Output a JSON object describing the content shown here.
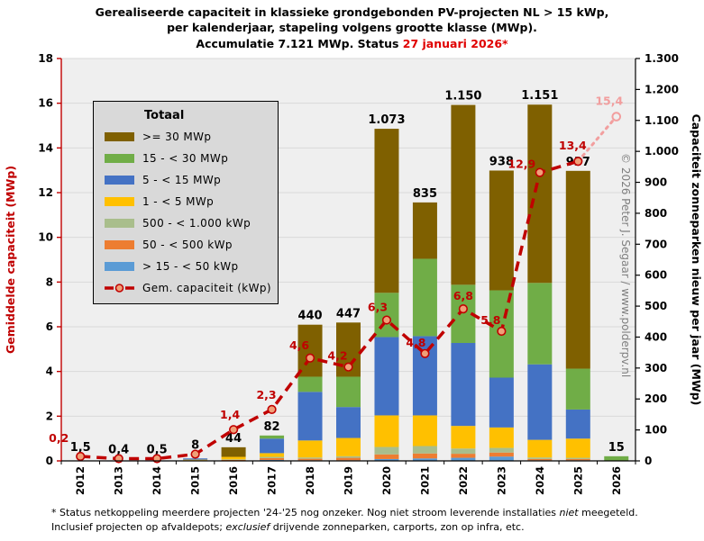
{
  "title": {
    "line1": "Gerealiseerde capaciteit in klassieke grondgebonden PV-projecten NL > 15 kWp,",
    "line2": "per kalenderjaar, stapeling volgens grootte klasse (MWp).",
    "line3_black": "Accumulatie 7.121 MWp. Status ",
    "line3_red": "27 januari 2026*"
  },
  "copyright": "© 2026 Peter J. Segaar / www.polderpv.nl",
  "legend": {
    "title": "Totaal"
  },
  "footnote": {
    "line1_a": "* Status netkoppeling meerdere projecten '24-'25 nog onzeker. Nog niet stroom leverende installaties ",
    "line1_em": "niet",
    "line1_b": " meegeteld.",
    "line2_a": "Inclusief projecten op afvaldepots; ",
    "line2_em": "exclusief",
    "line2_b": " drijvende zonneparken, carports, zon op infra, etc."
  },
  "chart_data": {
    "type": "bar",
    "stacked": true,
    "grid": true,
    "x": [
      "2012",
      "2013",
      "2014",
      "2015",
      "2016",
      "2017",
      "2018",
      "2019",
      "2020",
      "2021",
      "2022",
      "2023",
      "2024",
      "2025",
      "2026"
    ],
    "bar_total_labels": [
      "1,5",
      "0,4",
      "0,5",
      "8",
      "44",
      "82",
      "440",
      "447",
      "1.073",
      "835",
      "1.150",
      "938",
      "1.151",
      "937",
      "15"
    ],
    "series": [
      {
        "name": ">= 30 MWp",
        "color": "#7f6000",
        "values": [
          0,
          0,
          0,
          0,
          31,
          0,
          168,
          175,
          530,
          182,
          581,
          387,
          576,
          639,
          0
        ]
      },
      {
        "name": "15 - < 30 MWp",
        "color": "#70ad47",
        "values": [
          0,
          0,
          0,
          0,
          0,
          10,
          49,
          98,
          143,
          250,
          188,
          282,
          263,
          132,
          15
        ]
      },
      {
        "name": "5 - < 15 MWp",
        "color": "#4472c4",
        "values": [
          0,
          0,
          0,
          4,
          0,
          47,
          157,
          100,
          253,
          256,
          268,
          161,
          244,
          94,
          0
        ]
      },
      {
        "name": "1 - < 5 MWp",
        "color": "#ffc000",
        "values": [
          0,
          0,
          0,
          2,
          8,
          12,
          55,
          59,
          102,
          99,
          73,
          66,
          57,
          62,
          0
        ]
      },
      {
        "name": "500 - < 1.000 kWp",
        "color": "#a9be8c",
        "values": [
          0.3,
          0.1,
          0.1,
          0.5,
          1.5,
          4,
          4,
          5,
          24,
          24,
          17,
          15,
          5,
          4,
          0
        ]
      },
      {
        "name": "50 - < 500 kWp",
        "color": "#ed7d31",
        "values": [
          0.7,
          0.2,
          0.3,
          1,
          3,
          6,
          5,
          8,
          15,
          16,
          13,
          13,
          4,
          4,
          0
        ]
      },
      {
        "name": "> 15 - < 50 kWp",
        "color": "#5b9bd5",
        "values": [
          0.5,
          0.1,
          0.1,
          0.5,
          0.5,
          3,
          2,
          2,
          6,
          8,
          10,
          14,
          2,
          2,
          0
        ]
      }
    ],
    "line": {
      "name": "Gem. capaciteit (kWp)",
      "color": "#c00000",
      "marker_fill": "#f0a078",
      "projected_color": "#f29e9e",
      "values": [
        0.2,
        0.1,
        0.1,
        0.3,
        1.4,
        2.3,
        4.6,
        4.2,
        6.3,
        4.8,
        6.8,
        5.8,
        12.9,
        13.4,
        15.4
      ],
      "labels": [
        "0,2",
        "",
        "",
        "",
        "1,4",
        "2,3",
        "4,6",
        "4,2",
        "6,3",
        "4,8",
        "6,8",
        "5,8",
        "12,9",
        "13,4",
        "15,4"
      ],
      "projected_from_index": 13
    },
    "left_axis": {
      "label": "Gemiddelde capaciteit (MWp)",
      "color": "#c00000",
      "min": 0,
      "max": 18,
      "step": 2,
      "tick_labels": [
        "0",
        "2",
        "4",
        "6",
        "8",
        "10",
        "12",
        "14",
        "16",
        "18"
      ]
    },
    "right_axis": {
      "label": "Capaciteit zonneparken nieuw per jaar (MWp)",
      "color": "#000000",
      "min": 0,
      "max": 1300,
      "step": 100,
      "tick_labels": [
        "0",
        "100",
        "200",
        "300",
        "400",
        "500",
        "600",
        "700",
        "800",
        "900",
        "1.000",
        "1.100",
        "1.200",
        "1.300"
      ]
    }
  }
}
